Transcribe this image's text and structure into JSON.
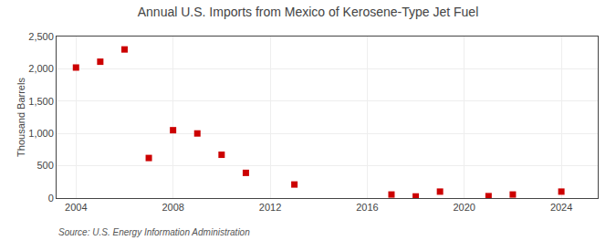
{
  "chart_data": {
    "type": "scatter",
    "title": "Annual U.S. Imports from Mexico of Kerosene-Type Jet Fuel",
    "ylabel": "Thousand Barrels",
    "annotations": [
      "Source: U.S. Energy Information Administration"
    ],
    "x": [
      2004,
      2005,
      2006,
      2007,
      2008,
      2009,
      2010,
      2011,
      2013,
      2017,
      2018,
      2019,
      2021,
      2022,
      2024
    ],
    "values": [
      2020,
      2110,
      2300,
      620,
      1050,
      1000,
      670,
      390,
      210,
      55,
      25,
      100,
      30,
      55,
      100
    ],
    "color": "#cc0000",
    "marker": "square",
    "xlim": [
      2003.2,
      2025.5
    ],
    "xticks": [
      2004,
      2008,
      2012,
      2016,
      2020,
      2024
    ],
    "ylim": [
      0,
      2500
    ],
    "yticks": [
      0,
      500,
      {
        "value": 1000,
        "label": "1,000"
      },
      {
        "value": 1500,
        "label": "1,500"
      },
      {
        "value": 2000,
        "label": "2,000"
      },
      {
        "value": 2500,
        "label": "2,500"
      }
    ],
    "grid": true
  }
}
